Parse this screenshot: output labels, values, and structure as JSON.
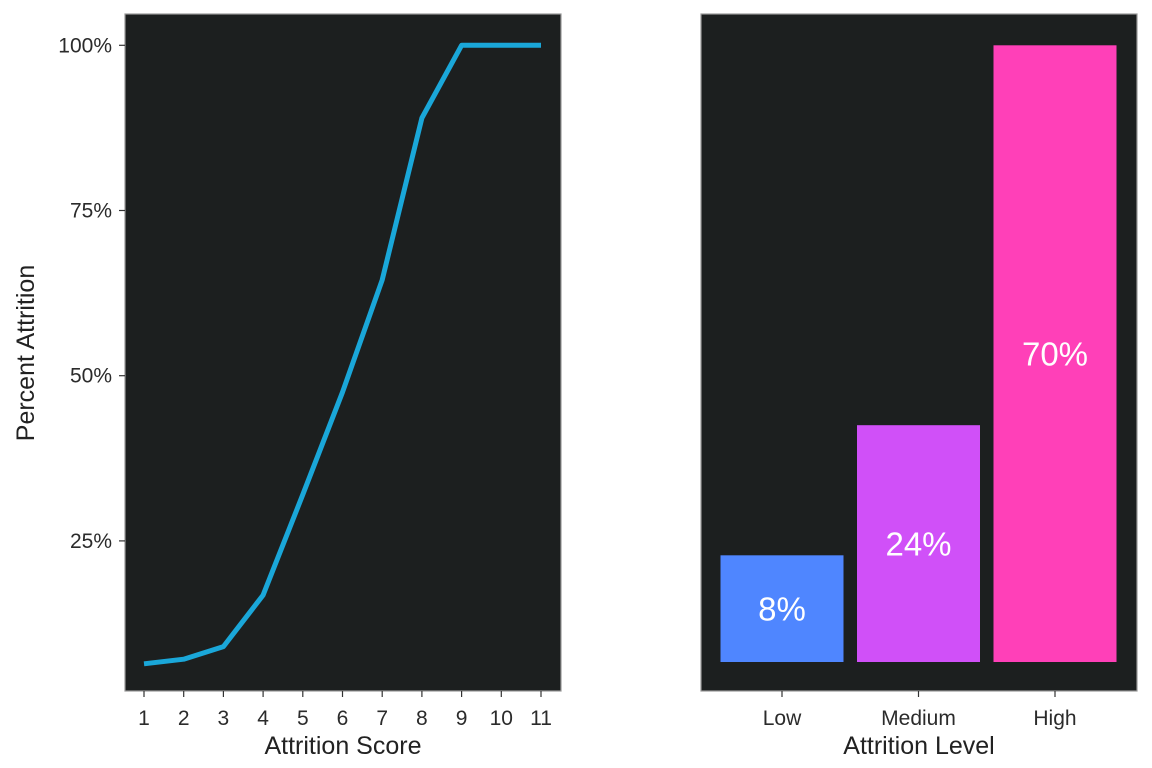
{
  "chart_data": [
    {
      "type": "line",
      "xlabel": "Attrition Score",
      "ylabel": "Percent Attrition",
      "x": [
        1,
        2,
        3,
        4,
        5,
        6,
        7,
        8,
        9,
        10,
        11
      ],
      "x_ticks": [
        "1",
        "2",
        "3",
        "4",
        "5",
        "6",
        "7",
        "8",
        "9",
        "10",
        "11"
      ],
      "values": [
        6.4,
        7.1,
        9.0,
        16.8,
        32.0,
        47.5,
        64.5,
        89.0,
        100,
        100,
        100
      ],
      "y_ticks": [
        25,
        50,
        75,
        100
      ],
      "y_tick_labels": [
        "25%",
        "50%",
        "75%",
        "100%"
      ],
      "ylim": [
        0,
        104.5
      ],
      "grid": false,
      "line_color": "#1aa7d9",
      "panel_background": "#1c1f1f"
    },
    {
      "type": "bar",
      "xlabel": "Attrition Level",
      "ylabel": "",
      "categories": [
        "Low",
        "Medium",
        "High"
      ],
      "values": [
        17.3,
        38.4,
        100
      ],
      "data_labels": [
        "8%",
        "24%",
        "70%"
      ],
      "colors": [
        "#4f86ff",
        "#d050f8",
        "#ff40b8"
      ],
      "ylim": [
        0,
        104.5
      ],
      "grid": false,
      "panel_background": "#1c1f1f"
    }
  ]
}
